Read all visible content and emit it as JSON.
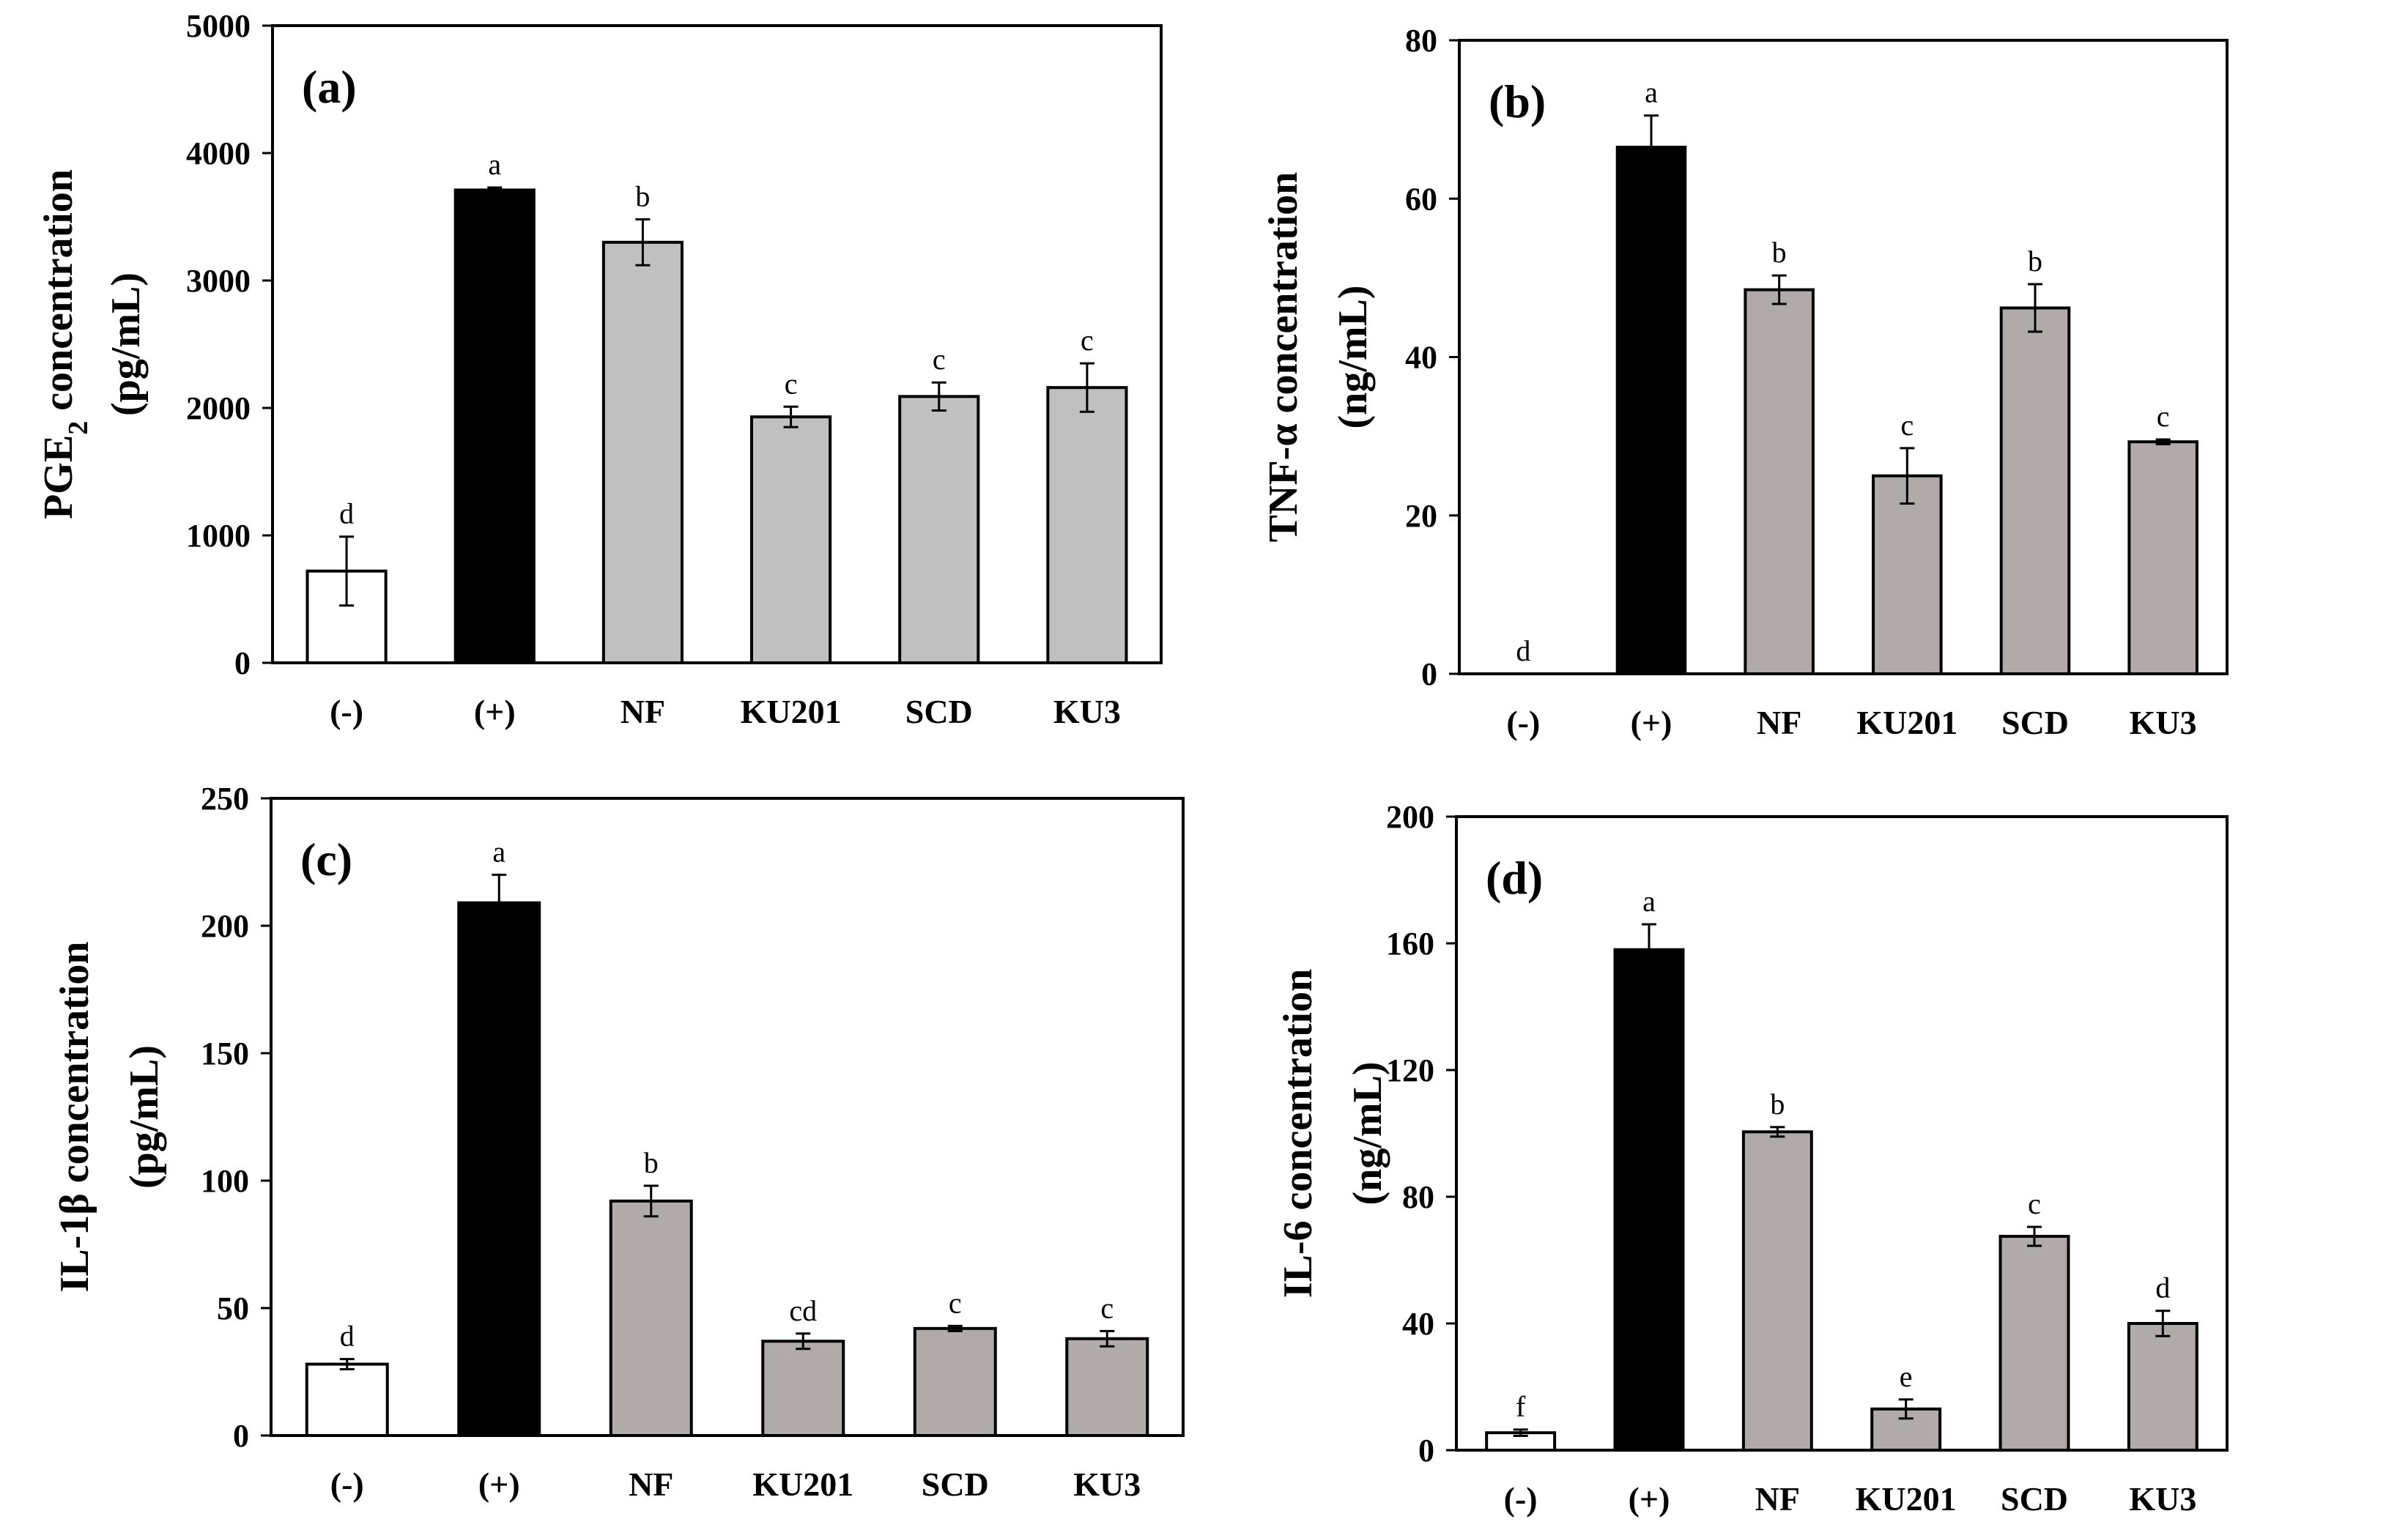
{
  "figure": {
    "categories": [
      "(-)",
      "(+)",
      "NF",
      "KU201",
      "SCD",
      "KU3"
    ],
    "colors": {
      "negative": "#ffffff",
      "positive": "#000000",
      "sample": "#c0c0c0",
      "sample_alt": "#b0aaa8",
      "axis": "#000000"
    }
  },
  "chart_data": [
    {
      "id": "a",
      "type": "bar",
      "panel_label": "(a)",
      "ylabel_main": "PGE",
      "ylabel_sub": "2",
      "ylabel_rest": " concentration",
      "ylabel_unit": "(pg/mL)",
      "categories": [
        "(-)",
        "(+)",
        "NF",
        "KU201",
        "SCD",
        "KU3"
      ],
      "values": [
        720,
        3710,
        3300,
        1930,
        2090,
        2160
      ],
      "errors": [
        270,
        20,
        180,
        80,
        110,
        190
      ],
      "letters": [
        "d",
        "a",
        "b",
        "c",
        "c",
        "c"
      ],
      "ylim": [
        0,
        5000
      ],
      "yticks": [
        "0",
        "1000",
        "2000",
        "3000",
        "4000",
        "5000"
      ],
      "fills": [
        "negative",
        "positive",
        "sample",
        "sample",
        "sample",
        "sample"
      ]
    },
    {
      "id": "b",
      "type": "bar",
      "panel_label": "(b)",
      "ylabel_main": "TNF-α concentration",
      "ylabel_unit": "(ng/mL)",
      "categories": [
        "(-)",
        "(+)",
        "NF",
        "KU201",
        "SCD",
        "KU3"
      ],
      "values": [
        0,
        66.5,
        48.5,
        25,
        46.2,
        29.3
      ],
      "errors": [
        0,
        4,
        1.8,
        3.5,
        3,
        0.3
      ],
      "letters": [
        "d",
        "a",
        "b",
        "c",
        "b",
        "c"
      ],
      "ylim": [
        0,
        80
      ],
      "yticks": [
        "0",
        "20",
        "40",
        "60",
        "80"
      ],
      "fills": [
        "negative",
        "positive",
        "sample_alt",
        "sample_alt",
        "sample_alt",
        "sample_alt"
      ]
    },
    {
      "id": "c",
      "type": "bar",
      "panel_label": "(c)",
      "ylabel_main": "IL-1β concentration",
      "ylabel_unit": "(pg/mL)",
      "categories": [
        "(-)",
        "(+)",
        "NF",
        "KU201",
        "SCD",
        "KU3"
      ],
      "values": [
        28,
        209,
        92,
        37,
        42,
        38
      ],
      "errors": [
        2,
        11,
        6,
        3,
        1,
        3
      ],
      "letters": [
        "d",
        "a",
        "b",
        "cd",
        "c",
        "c"
      ],
      "ylim": [
        0,
        250
      ],
      "yticks": [
        "0",
        "50",
        "100",
        "150",
        "200",
        "250"
      ],
      "fills": [
        "negative",
        "positive",
        "sample_alt",
        "sample_alt",
        "sample_alt",
        "sample_alt"
      ]
    },
    {
      "id": "d",
      "type": "bar",
      "panel_label": "(d)",
      "ylabel_main": "IL-6 concentration",
      "ylabel_unit": "(ng/mL)",
      "categories": [
        "(-)",
        "(+)",
        "NF",
        "KU201",
        "SCD",
        "KU3"
      ],
      "values": [
        5.5,
        158,
        100.5,
        13,
        67.5,
        40
      ],
      "errors": [
        1,
        8,
        1.5,
        3,
        3,
        4
      ],
      "letters": [
        "f",
        "a",
        "b",
        "e",
        "c",
        "d"
      ],
      "ylim": [
        0,
        200
      ],
      "yticks": [
        "0",
        "40",
        "80",
        "120",
        "160",
        "200"
      ],
      "fills": [
        "negative",
        "positive",
        "sample_alt",
        "sample_alt",
        "sample_alt",
        "sample_alt"
      ]
    }
  ]
}
